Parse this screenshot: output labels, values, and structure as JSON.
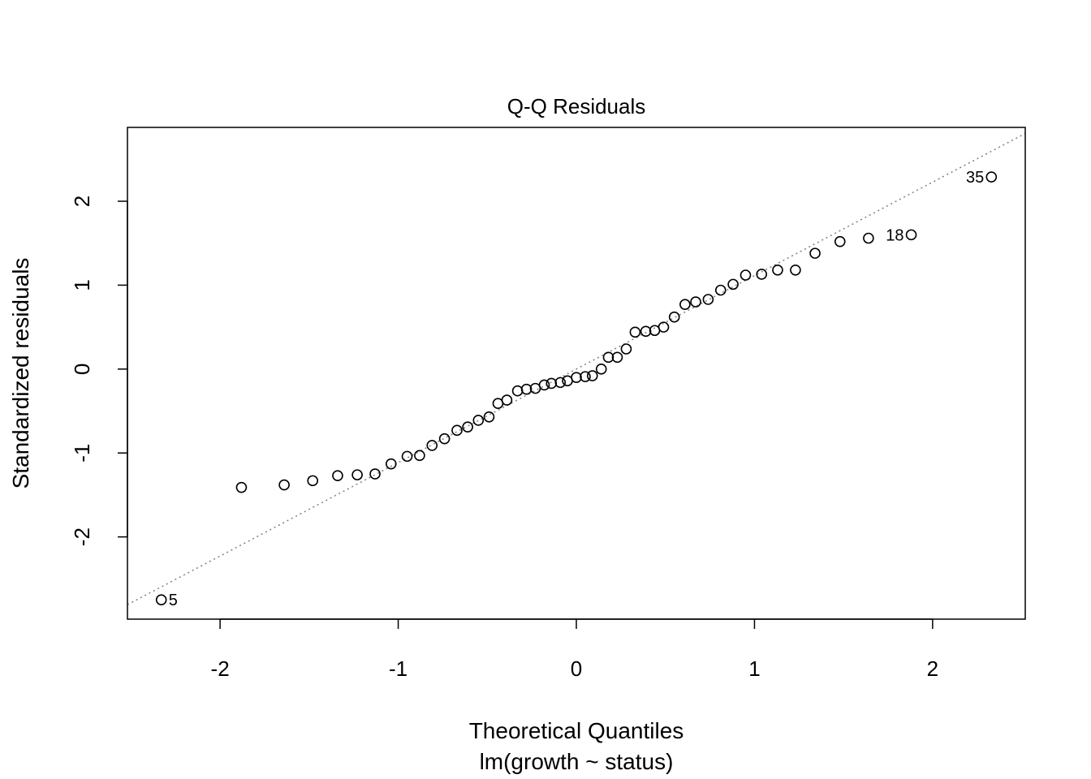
{
  "chart_data": {
    "type": "scatter",
    "title": "Q-Q Residuals",
    "xlabel": "Theoretical Quantiles",
    "xlabel_sub": "lm(growth ~ status)",
    "ylabel": "Standardized residuals",
    "xlim": [
      -2.52,
      2.52
    ],
    "ylim": [
      -2.98,
      2.88
    ],
    "xticks": [
      -2,
      -1,
      0,
      1,
      2
    ],
    "xtick_labels": [
      "-2",
      "-1",
      "0",
      "1",
      "2"
    ],
    "yticks": [
      -2,
      -1,
      0,
      1,
      2
    ],
    "ytick_labels": [
      "-2",
      "-1",
      "0",
      "1",
      "2"
    ],
    "grid": false,
    "reference_line": {
      "intercept": 0.0,
      "slope": 1.114,
      "style": "dotted",
      "color": "#808080"
    },
    "points": {
      "x": [
        -2.33,
        -1.88,
        -1.64,
        -1.48,
        -1.34,
        -1.23,
        -1.13,
        -1.04,
        -0.95,
        -0.88,
        -0.81,
        -0.74,
        -0.67,
        -0.61,
        -0.55,
        -0.49,
        -0.44,
        -0.39,
        -0.33,
        -0.28,
        -0.23,
        -0.18,
        -0.14,
        -0.09,
        -0.05,
        0.0,
        0.05,
        0.09,
        0.14,
        0.18,
        0.23,
        0.28,
        0.33,
        0.39,
        0.44,
        0.49,
        0.55,
        0.61,
        0.67,
        0.74,
        0.81,
        0.88,
        0.95,
        1.04,
        1.13,
        1.23,
        1.34,
        1.48,
        1.64,
        1.88,
        2.33
      ],
      "y": [
        -2.75,
        -1.41,
        -1.38,
        -1.33,
        -1.27,
        -1.26,
        -1.25,
        -1.13,
        -1.04,
        -1.03,
        -0.91,
        -0.83,
        -0.73,
        -0.69,
        -0.61,
        -0.57,
        -0.41,
        -0.37,
        -0.26,
        -0.24,
        -0.23,
        -0.19,
        -0.17,
        -0.16,
        -0.14,
        -0.1,
        -0.09,
        -0.08,
        0.0,
        0.14,
        0.14,
        0.24,
        0.44,
        0.45,
        0.46,
        0.5,
        0.62,
        0.77,
        0.8,
        0.83,
        0.94,
        1.01,
        1.12,
        1.13,
        1.18,
        1.18,
        1.38,
        1.52,
        1.56,
        1.6,
        2.29
      ]
    },
    "labeled_points": [
      {
        "index": 0,
        "label": "5",
        "side": "right"
      },
      {
        "index": 49,
        "label": "18",
        "side": "left"
      },
      {
        "index": 50,
        "label": "35",
        "side": "left"
      }
    ],
    "marker": "open-circle"
  }
}
